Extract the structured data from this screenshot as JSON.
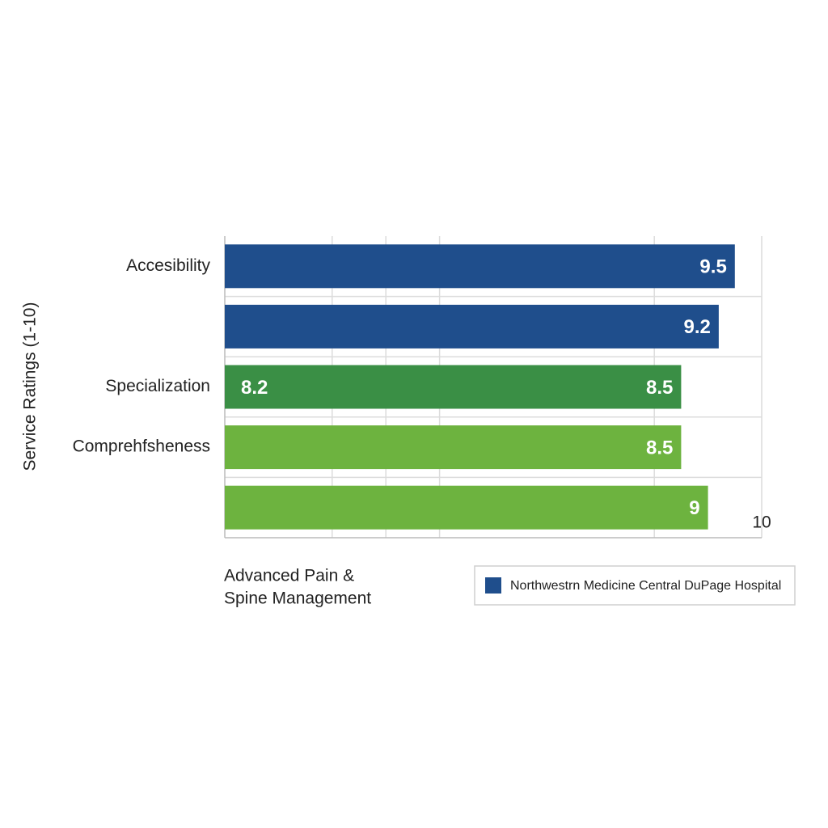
{
  "chart_data": {
    "type": "hbar",
    "y_label": "Service Ratings (1-10)",
    "categories": [
      "Accesibility",
      null,
      "Specialization",
      "Comprehfsheness",
      null
    ],
    "series": [
      {
        "name": "Northwestrn Medicine Central DuPage Hospital",
        "color": "#1f4e8c",
        "values": [
          9.5,
          9.2,
          8.5,
          8.5,
          9.0
        ]
      }
    ],
    "colors": [
      "#1f4e8c",
      "#1f4e8c",
      "#3a8f45",
      "#6db33f",
      "#6db33f"
    ],
    "xlim": [
      0,
      10
    ],
    "xticks": [
      2,
      3,
      4,
      8,
      10
    ],
    "grid": true,
    "annotations": [
      "8.2"
    ],
    "note": [
      "Advanced Pain &",
      "Spine Management"
    ],
    "legend": "bottom-right"
  }
}
